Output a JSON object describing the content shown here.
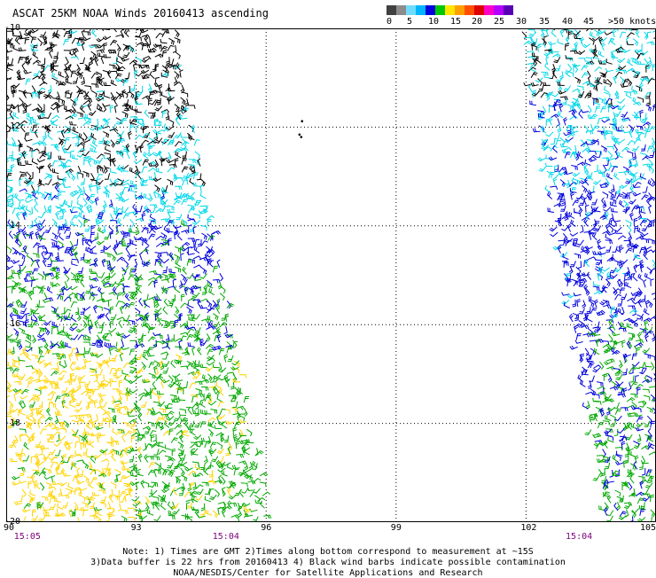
{
  "title": "ASCAT 25KM NOAA Winds 20160413 ascending",
  "legend": {
    "colors": [
      "#404040",
      "#8c8c8c",
      "#6fdcff",
      "#00b4ff",
      "#0000dc",
      "#00c800",
      "#ffe600",
      "#ffa000",
      "#ff5000",
      "#dc0000",
      "#ff00c8",
      "#b400ff",
      "#5a00b4"
    ],
    "labels": [
      "0",
      "5",
      "10",
      "15",
      "20",
      "25",
      "30",
      "35",
      "40",
      "45",
      ">50 knots"
    ]
  },
  "lat_labels": [
    "-10",
    "-12",
    "-14",
    "-16",
    "-18",
    "-20"
  ],
  "lon_labels": [
    "90",
    "93",
    "96",
    "99",
    "102",
    "105"
  ],
  "time_labels": [
    "15:05",
    "15:04",
    "15:04"
  ],
  "notes": {
    "line1": "Note: 1) Times are GMT 2)Times along bottom correspond to measurement at ~15S",
    "line2": "3)Data buffer is 22 hrs from 20160413 4) Black wind barbs indicate possible contamination",
    "line3": "NOAA/NESDIS/Center for Satellite Applications and Research"
  },
  "map": {
    "lat_range": [
      -20,
      -10
    ],
    "lon_range": [
      90,
      105
    ],
    "grid": "dotted",
    "wind_colors": {
      "black": "#000000",
      "cyan": "#00d8e8",
      "blue": "#0000dc",
      "green": "#00a800",
      "yellow": "#ffd400"
    }
  }
}
